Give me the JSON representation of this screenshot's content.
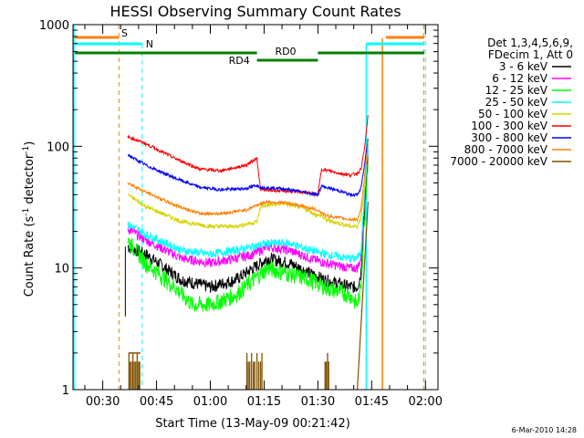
{
  "chart_data": {
    "type": "line",
    "title": "HESSI Observing Summary Count Rates",
    "xlabel": "Start Time (13-May-09 00:21:42)",
    "ylabel_main": "Count Rate (s",
    "ylabel_sup1": "-1",
    "ylabel_mid": " detector",
    "ylabel_sup2": "-1",
    "ylabel_end": ")",
    "y_scale": "log",
    "ylim": [
      1,
      1000
    ],
    "xlim_minutes": [
      21.7,
      123.5
    ],
    "x_ticks": [
      {
        "label": "00:30",
        "minute": 30
      },
      {
        "label": "00:45",
        "minute": 45
      },
      {
        "label": "01:00",
        "minute": 60
      },
      {
        "label": "01:15",
        "minute": 75
      },
      {
        "label": "01:30",
        "minute": 90
      },
      {
        "label": "01:45",
        "minute": 105
      },
      {
        "label": "02:00",
        "minute": 120
      }
    ],
    "y_ticks": [
      {
        "label": "1",
        "value": 1
      },
      {
        "label": "10",
        "value": 10
      },
      {
        "label": "100",
        "value": 100
      },
      {
        "label": "1000",
        "value": 1000
      }
    ],
    "legend_header": [
      "Det 1,3,4,5,6,9,",
      "FDecim 1, Att 0"
    ],
    "legend_position": "right",
    "series": [
      {
        "name": "3 - 6 keV",
        "color": "#000000",
        "points": [
          [
            37,
            15
          ],
          [
            42,
            13
          ],
          [
            52,
            8
          ],
          [
            60,
            7
          ],
          [
            67,
            8
          ],
          [
            72,
            10
          ],
          [
            76,
            12
          ],
          [
            82,
            11
          ],
          [
            88,
            9
          ],
          [
            92,
            8
          ],
          [
            99,
            7
          ],
          [
            101,
            7
          ],
          [
            102,
            9
          ],
          [
            103,
            30
          ],
          [
            104,
            90
          ]
        ]
      },
      {
        "name": "6 - 12 keV",
        "color": "#ff00ff",
        "points": [
          [
            37,
            21
          ],
          [
            42,
            17
          ],
          [
            52,
            12
          ],
          [
            60,
            11
          ],
          [
            67,
            12
          ],
          [
            72,
            13
          ],
          [
            76,
            15
          ],
          [
            82,
            14
          ],
          [
            88,
            12
          ],
          [
            92,
            11
          ],
          [
            99,
            10
          ],
          [
            101,
            10
          ],
          [
            102,
            12
          ],
          [
            103,
            40
          ],
          [
            104,
            110
          ]
        ]
      },
      {
        "name": "12 - 25 keV",
        "color": "#00ff00",
        "points": [
          [
            37,
            17
          ],
          [
            42,
            11
          ],
          [
            50,
            7
          ],
          [
            55,
            5
          ],
          [
            60,
            5
          ],
          [
            67,
            6
          ],
          [
            72,
            8
          ],
          [
            76,
            10
          ],
          [
            82,
            9
          ],
          [
            88,
            8
          ],
          [
            92,
            7
          ],
          [
            99,
            6
          ],
          [
            101,
            5
          ],
          [
            102,
            7
          ],
          [
            103,
            25
          ],
          [
            104,
            80
          ]
        ]
      },
      {
        "name": "25 - 50 keV",
        "color": "#00ffff",
        "points": [
          [
            37,
            23
          ],
          [
            42,
            19
          ],
          [
            52,
            14
          ],
          [
            60,
            13
          ],
          [
            67,
            14
          ],
          [
            72,
            15
          ],
          [
            76,
            16
          ],
          [
            82,
            16
          ],
          [
            88,
            14
          ],
          [
            92,
            13
          ],
          [
            99,
            12
          ],
          [
            101,
            12
          ],
          [
            102,
            14
          ],
          [
            103,
            40
          ],
          [
            104,
            100
          ]
        ]
      },
      {
        "name": "50 - 100 keV",
        "color": "#d4d400",
        "points": [
          [
            37,
            40
          ],
          [
            42,
            32
          ],
          [
            52,
            24
          ],
          [
            60,
            22
          ],
          [
            67,
            22
          ],
          [
            73,
            24
          ],
          [
            74,
            32
          ],
          [
            80,
            34
          ],
          [
            86,
            31
          ],
          [
            90,
            27
          ],
          [
            91,
            27
          ],
          [
            92,
            25
          ],
          [
            99,
            22
          ],
          [
            101,
            22
          ],
          [
            102,
            26
          ],
          [
            103,
            45
          ],
          [
            104,
            110
          ]
        ]
      },
      {
        "name": "100 - 300 keV",
        "color": "#ff0000",
        "points": [
          [
            37,
            120
          ],
          [
            42,
            105
          ],
          [
            50,
            80
          ],
          [
            57,
            65
          ],
          [
            63,
            63
          ],
          [
            70,
            70
          ],
          [
            73,
            80
          ],
          [
            74,
            44
          ],
          [
            80,
            43
          ],
          [
            86,
            42
          ],
          [
            90,
            40
          ],
          [
            91,
            65
          ],
          [
            96,
            60
          ],
          [
            99,
            58
          ],
          [
            101,
            60
          ],
          [
            102,
            65
          ],
          [
            103,
            95
          ],
          [
            104,
            180
          ]
        ]
      },
      {
        "name": "300 - 800 keV",
        "color": "#0000ff",
        "points": [
          [
            37,
            85
          ],
          [
            42,
            70
          ],
          [
            50,
            55
          ],
          [
            57,
            46
          ],
          [
            63,
            44
          ],
          [
            70,
            45
          ],
          [
            73,
            48
          ],
          [
            74,
            46
          ],
          [
            80,
            45
          ],
          [
            86,
            42
          ],
          [
            90,
            40
          ],
          [
            91,
            47
          ],
          [
            96,
            43
          ],
          [
            99,
            40
          ],
          [
            101,
            40
          ],
          [
            102,
            45
          ],
          [
            103,
            70
          ],
          [
            104,
            120
          ]
        ]
      },
      {
        "name": "800 - 7000 keV",
        "color": "#ff8000",
        "points": [
          [
            37,
            50
          ],
          [
            42,
            42
          ],
          [
            50,
            33
          ],
          [
            57,
            28
          ],
          [
            63,
            28
          ],
          [
            70,
            30
          ],
          [
            73,
            33
          ],
          [
            76,
            35
          ],
          [
            82,
            34
          ],
          [
            86,
            32
          ],
          [
            90,
            30
          ],
          [
            92,
            27
          ],
          [
            99,
            25
          ],
          [
            101,
            25
          ],
          [
            102,
            30
          ],
          [
            103,
            55
          ],
          [
            104,
            110
          ]
        ]
      },
      {
        "name": "7000 - 20000 keV",
        "color": "#805000",
        "points": []
      }
    ],
    "annotations": [
      {
        "label": "S",
        "color": "#ff8000"
      },
      {
        "label": "N",
        "color": "#00ffff"
      },
      {
        "label": "RD0",
        "color": "#008000"
      },
      {
        "label": "RD4",
        "color": "#008000"
      }
    ]
  },
  "footer_date": "6-Mar-2010 14:28"
}
